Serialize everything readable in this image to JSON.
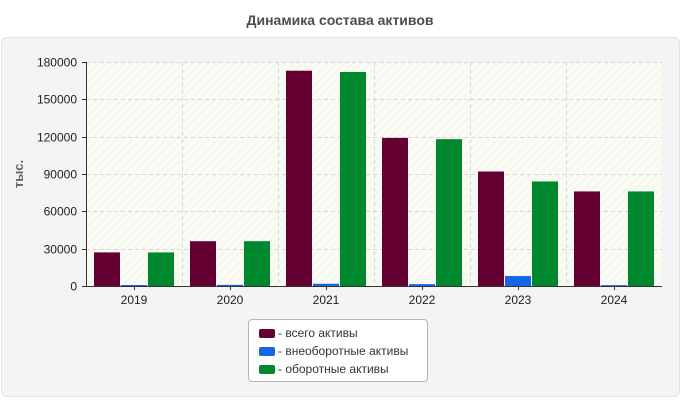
{
  "chart_data": {
    "type": "bar",
    "title": "Динамика состава активов",
    "xlabel": "",
    "ylabel": "тыс.",
    "ylim": [
      0,
      180000
    ],
    "yticks": [
      0,
      30000,
      60000,
      90000,
      120000,
      150000,
      180000
    ],
    "categories": [
      "2019",
      "2020",
      "2021",
      "2022",
      "2023",
      "2024"
    ],
    "series": [
      {
        "name": "- всего активы",
        "color": "#660033",
        "values": [
          27000,
          36000,
          173000,
          119000,
          92000,
          76000
        ]
      },
      {
        "name": "- внеоборотные активы",
        "color": "#1366e8",
        "values": [
          800,
          900,
          1800,
          1500,
          8000,
          700
        ]
      },
      {
        "name": "- оборотные активы",
        "color": "#00882e",
        "values": [
          27000,
          36000,
          172000,
          118000,
          84000,
          76000
        ]
      }
    ],
    "grid": true,
    "legend_position": "bottom-center"
  }
}
